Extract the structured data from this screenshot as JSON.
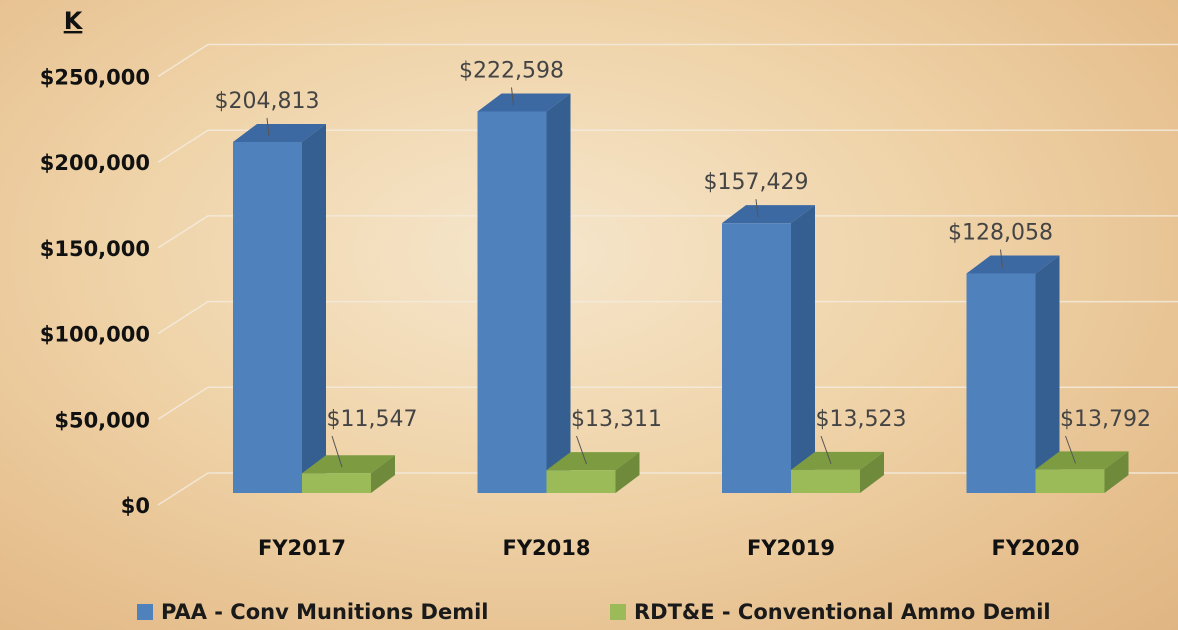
{
  "chart_data": {
    "type": "bar3d",
    "y_axis_label": "K",
    "categories": [
      "FY2017",
      "FY2018",
      "FY2019",
      "FY2020"
    ],
    "series": [
      {
        "name": "PAA - Conv Munitions Demil",
        "color": "#4f81bd",
        "side_color": "#365f91",
        "top_color": "#3d69a3",
        "values": [
          204813,
          222598,
          157429,
          128058
        ],
        "value_labels": [
          "$204,813",
          "$222,598",
          "$157,429",
          "$128,058"
        ]
      },
      {
        "name": "RDT&E - Conventional Ammo Demil",
        "color": "#9bbb59",
        "side_color": "#6e8a3a",
        "top_color": "#7d9c42",
        "values": [
          11547,
          13311,
          13523,
          13792
        ],
        "value_labels": [
          "$11,547",
          "$13,311",
          "$13,523",
          "$13,792"
        ]
      }
    ],
    "ylim": [
      0,
      250000
    ],
    "yticks": [
      {
        "value": 0,
        "label": "$0"
      },
      {
        "value": 50000,
        "label": "$50,000"
      },
      {
        "value": 100000,
        "label": "$100,000"
      },
      {
        "value": 150000,
        "label": "$150,000"
      },
      {
        "value": 200000,
        "label": "$200,000"
      },
      {
        "value": 250000,
        "label": "$250,000"
      }
    ],
    "grid": true
  }
}
